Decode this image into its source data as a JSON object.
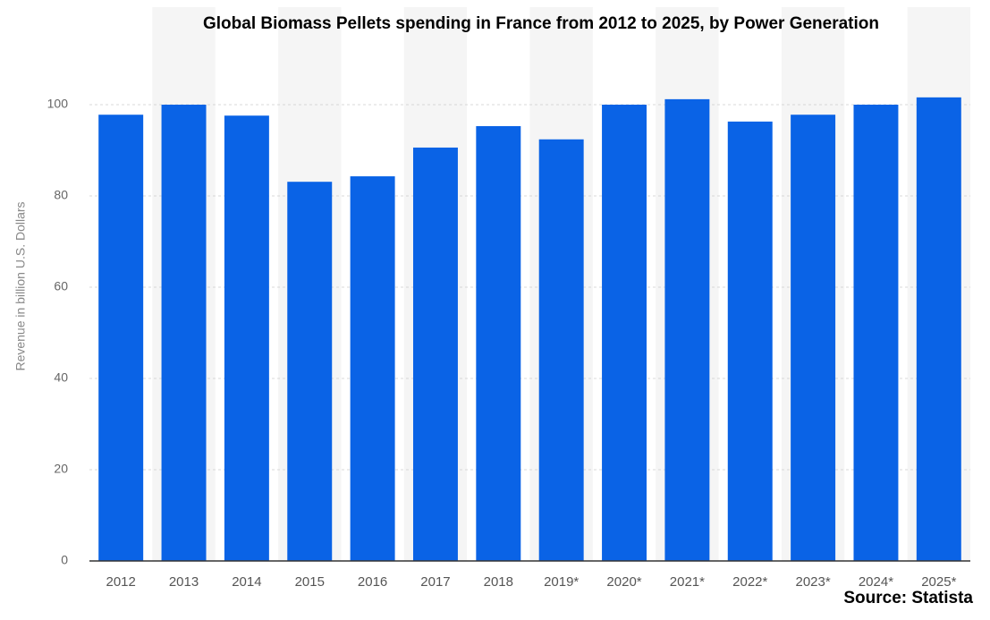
{
  "chart_data": {
    "type": "bar",
    "title": "Global Biomass Pellets spending in France from 2012 to 2025, by Power Generation",
    "y_label": "Revenue in billion U.S. Dollars",
    "source": "Source: Statista",
    "categories": [
      "2012",
      "2013",
      "2014",
      "2015",
      "2016",
      "2017",
      "2018",
      "2019*",
      "2020*",
      "2021*",
      "2022*",
      "2023*",
      "2024*",
      "2025*"
    ],
    "values": [
      97.8,
      100,
      97.6,
      83.1,
      84.3,
      90.6,
      95.3,
      92.4,
      100,
      101.2,
      96.3,
      97.8,
      100,
      101.6
    ],
    "color": "#0a63e6",
    "ylim": [
      0,
      120
    ],
    "yticks": [
      0,
      20,
      40,
      60,
      80,
      100
    ],
    "grid": true
  }
}
